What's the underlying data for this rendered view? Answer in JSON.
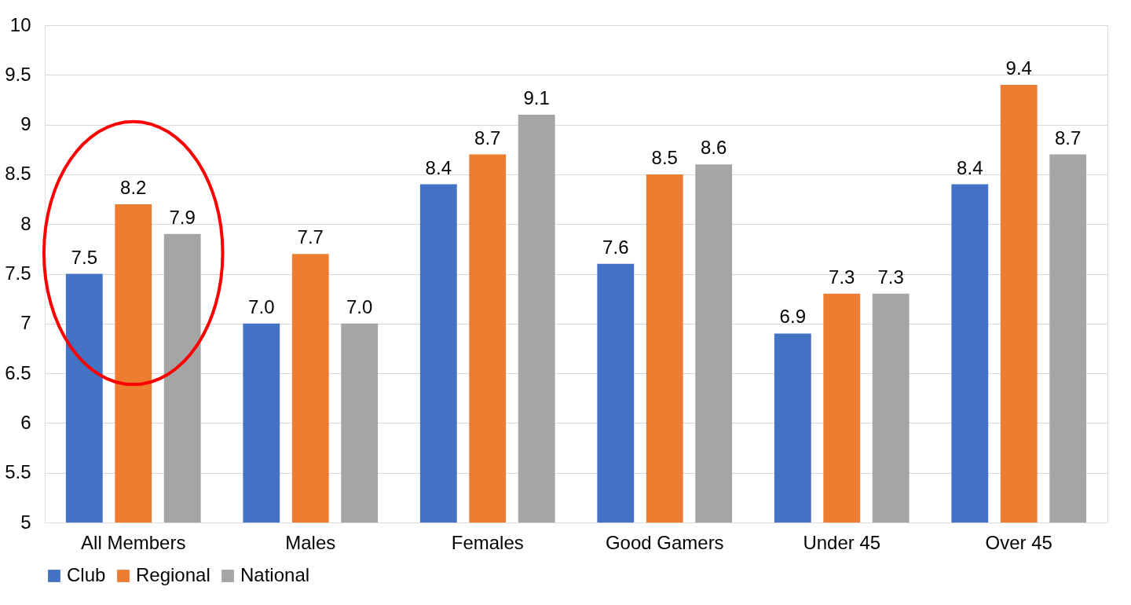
{
  "chart_data": {
    "type": "bar",
    "categories": [
      "All Members",
      "Males",
      "Females",
      "Good Gamers",
      "Under 45",
      "Over 45"
    ],
    "series": [
      {
        "name": "Club",
        "color": "#4472c4",
        "values": [
          7.5,
          7.0,
          8.4,
          7.6,
          6.9,
          8.4
        ],
        "value_labels": [
          "7.5",
          "7.0",
          "8.4",
          "7.6",
          "6.9",
          "8.4"
        ]
      },
      {
        "name": "Regional",
        "color": "#ed7d31",
        "values": [
          8.2,
          7.7,
          8.7,
          8.5,
          7.3,
          9.4
        ],
        "value_labels": [
          "8.2",
          "7.7",
          "8.7",
          "8.5",
          "7.3",
          "9.4"
        ]
      },
      {
        "name": "National",
        "color": "#a5a5a5",
        "values": [
          7.9,
          7.0,
          9.1,
          8.6,
          7.3,
          8.7
        ],
        "value_labels": [
          "7.9",
          "7.0",
          "9.1",
          "8.6",
          "7.3",
          "8.7"
        ]
      }
    ],
    "ylim": [
      5,
      10
    ],
    "yticks": [
      5,
      5.5,
      6,
      6.5,
      7,
      7.5,
      8,
      8.5,
      9,
      9.5,
      10
    ],
    "grid": "y",
    "legend": "bottom"
  }
}
